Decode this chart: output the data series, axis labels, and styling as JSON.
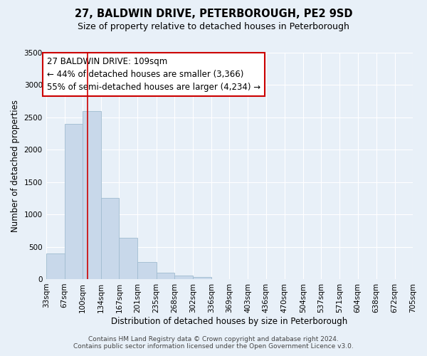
{
  "title_line1": "27, BALDWIN DRIVE, PETERBOROUGH, PE2 9SD",
  "title_line2": "Size of property relative to detached houses in Peterborough",
  "xlabel": "Distribution of detached houses by size in Peterborough",
  "ylabel": "Number of detached properties",
  "bar_color": "#c8d8ea",
  "bar_edge_color": "#a0bcd0",
  "background_color": "#e8f0f8",
  "plot_bg_color": "#e8f0f8",
  "tick_labels": [
    "33sqm",
    "67sqm",
    "100sqm",
    "134sqm",
    "167sqm",
    "201sqm",
    "235sqm",
    "268sqm",
    "302sqm",
    "336sqm",
    "369sqm",
    "403sqm",
    "436sqm",
    "470sqm",
    "504sqm",
    "537sqm",
    "571sqm",
    "604sqm",
    "638sqm",
    "672sqm",
    "705sqm"
  ],
  "bar_values": [
    400,
    2400,
    2600,
    1250,
    640,
    260,
    100,
    50,
    30,
    0,
    0,
    0,
    0,
    0,
    0,
    0,
    0,
    0,
    0,
    0
  ],
  "bin_edges_sqm": [
    33,
    67,
    100,
    134,
    167,
    201,
    235,
    268,
    302,
    336,
    369,
    403,
    436,
    470,
    504,
    537,
    571,
    604,
    638,
    672,
    705
  ],
  "ylim": [
    0,
    3500
  ],
  "yticks": [
    0,
    500,
    1000,
    1500,
    2000,
    2500,
    3000,
    3500
  ],
  "vline_x": 109,
  "vline_color": "#cc0000",
  "annotation_title": "27 BALDWIN DRIVE: 109sqm",
  "annotation_line1": "← 44% of detached houses are smaller (3,366)",
  "annotation_line2": "55% of semi-detached houses are larger (4,234) →",
  "annotation_box_color": "#ffffff",
  "annotation_box_edge": "#cc0000",
  "footer_line1": "Contains HM Land Registry data © Crown copyright and database right 2024.",
  "footer_line2": "Contains public sector information licensed under the Open Government Licence v3.0.",
  "title_fontsize": 10.5,
  "subtitle_fontsize": 9,
  "axis_label_fontsize": 8.5,
  "tick_fontsize": 7.5,
  "annotation_title_fontsize": 9,
  "annotation_body_fontsize": 8.5,
  "footer_fontsize": 6.5
}
